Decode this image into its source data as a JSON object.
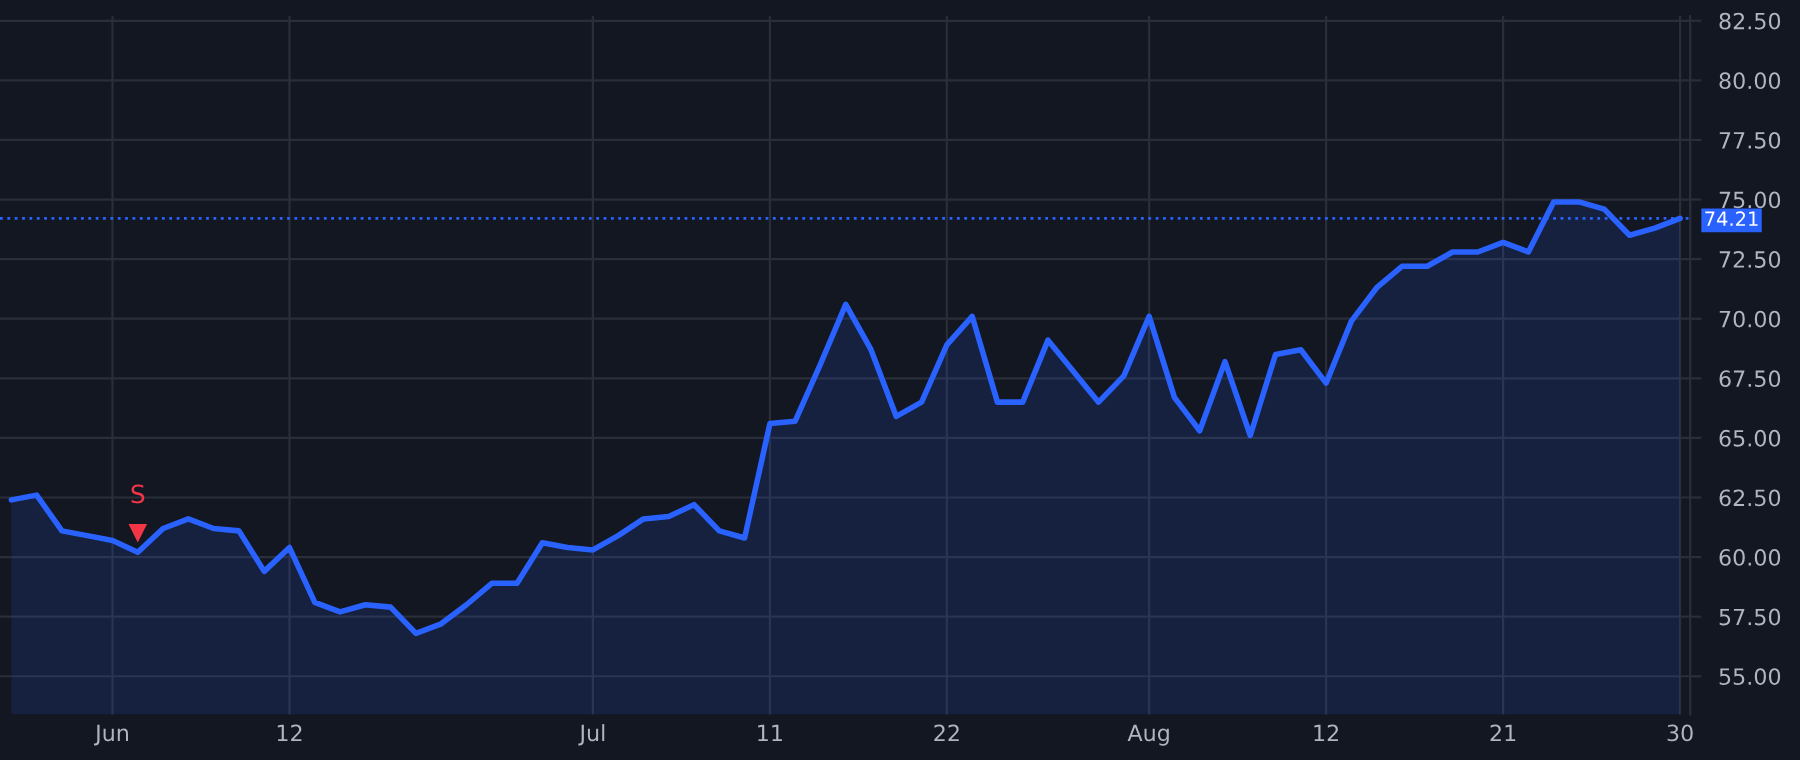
{
  "chart_data": {
    "type": "area",
    "categories": [
      null,
      null,
      null,
      null,
      "Jun",
      null,
      null,
      null,
      null,
      null,
      null,
      "12",
      null,
      null,
      null,
      null,
      null,
      null,
      null,
      null,
      null,
      null,
      null,
      "Jul",
      null,
      null,
      null,
      null,
      null,
      null,
      "11",
      null,
      null,
      null,
      null,
      null,
      null,
      "22",
      null,
      null,
      null,
      null,
      null,
      null,
      null,
      "Aug",
      null,
      null,
      null,
      null,
      null,
      null,
      "12",
      null,
      null,
      null,
      null,
      null,
      null,
      "21",
      null,
      null,
      null,
      null,
      null,
      null,
      "30"
    ],
    "series": [
      {
        "color": "#2962ff",
        "values": [
          62.4,
          62.6,
          61.1,
          60.9,
          60.7,
          60.2,
          61.2,
          61.6,
          61.2,
          61.1,
          59.4,
          60.4,
          58.1,
          57.7,
          58.0,
          57.9,
          56.8,
          57.2,
          58.0,
          58.9,
          58.9,
          60.6,
          60.4,
          60.3,
          60.9,
          61.6,
          61.7,
          62.2,
          61.1,
          60.8,
          65.6,
          65.7,
          68.1,
          70.6,
          68.7,
          65.9,
          66.5,
          68.9,
          70.1,
          66.5,
          66.5,
          69.1,
          67.8,
          66.5,
          67.6,
          70.1,
          66.7,
          65.3,
          68.2,
          65.1,
          68.5,
          68.7,
          67.3,
          69.9,
          71.3,
          72.2,
          72.2,
          72.8,
          72.8,
          73.2,
          72.8,
          74.9,
          74.9,
          74.6,
          73.5,
          73.8,
          74.21
        ]
      },
      {
        "type": "scatter",
        "name": "S",
        "color": "#f23645",
        "marker": "triangle",
        "values": [
          null,
          null,
          null,
          null,
          null,
          61.0,
          null,
          null,
          null,
          null,
          null,
          null,
          null,
          null,
          null,
          null,
          null,
          null,
          null,
          null,
          null,
          null,
          null,
          null,
          null,
          null,
          null,
          null,
          null,
          null,
          null,
          null,
          null,
          null,
          null,
          null,
          null,
          null,
          null,
          null,
          null,
          null,
          null,
          null,
          null,
          null,
          null,
          null,
          null,
          null,
          null,
          null,
          null,
          null,
          null,
          null,
          null,
          null,
          null,
          null,
          null,
          null,
          null,
          null,
          null,
          null,
          null
        ]
      }
    ],
    "ylim": [
      53.4,
      82.7
    ],
    "yticks": [
      {
        "value": 55,
        "label": "55.00"
      },
      {
        "value": 57.5,
        "label": "57.50"
      },
      {
        "value": 60,
        "label": "60.00"
      },
      {
        "value": 62.5,
        "label": "62.50"
      },
      {
        "value": 65,
        "label": "65.00"
      },
      {
        "value": 67.5,
        "label": "67.50"
      },
      {
        "value": 70,
        "label": "70.00"
      },
      {
        "value": 72.5,
        "label": "72.50"
      },
      {
        "value": 75,
        "label": "75.00"
      },
      {
        "value": 77.5,
        "label": "77.50"
      },
      {
        "value": 80,
        "label": "80.00"
      },
      {
        "value": 82.5,
        "label": "82.50"
      }
    ],
    "ref_lines": [
      {
        "axis": "y",
        "value": 74.21,
        "label": "74.21",
        "color": "#2962ff",
        "line_style": "dotted"
      }
    ],
    "grid": true,
    "legend": false
  }
}
